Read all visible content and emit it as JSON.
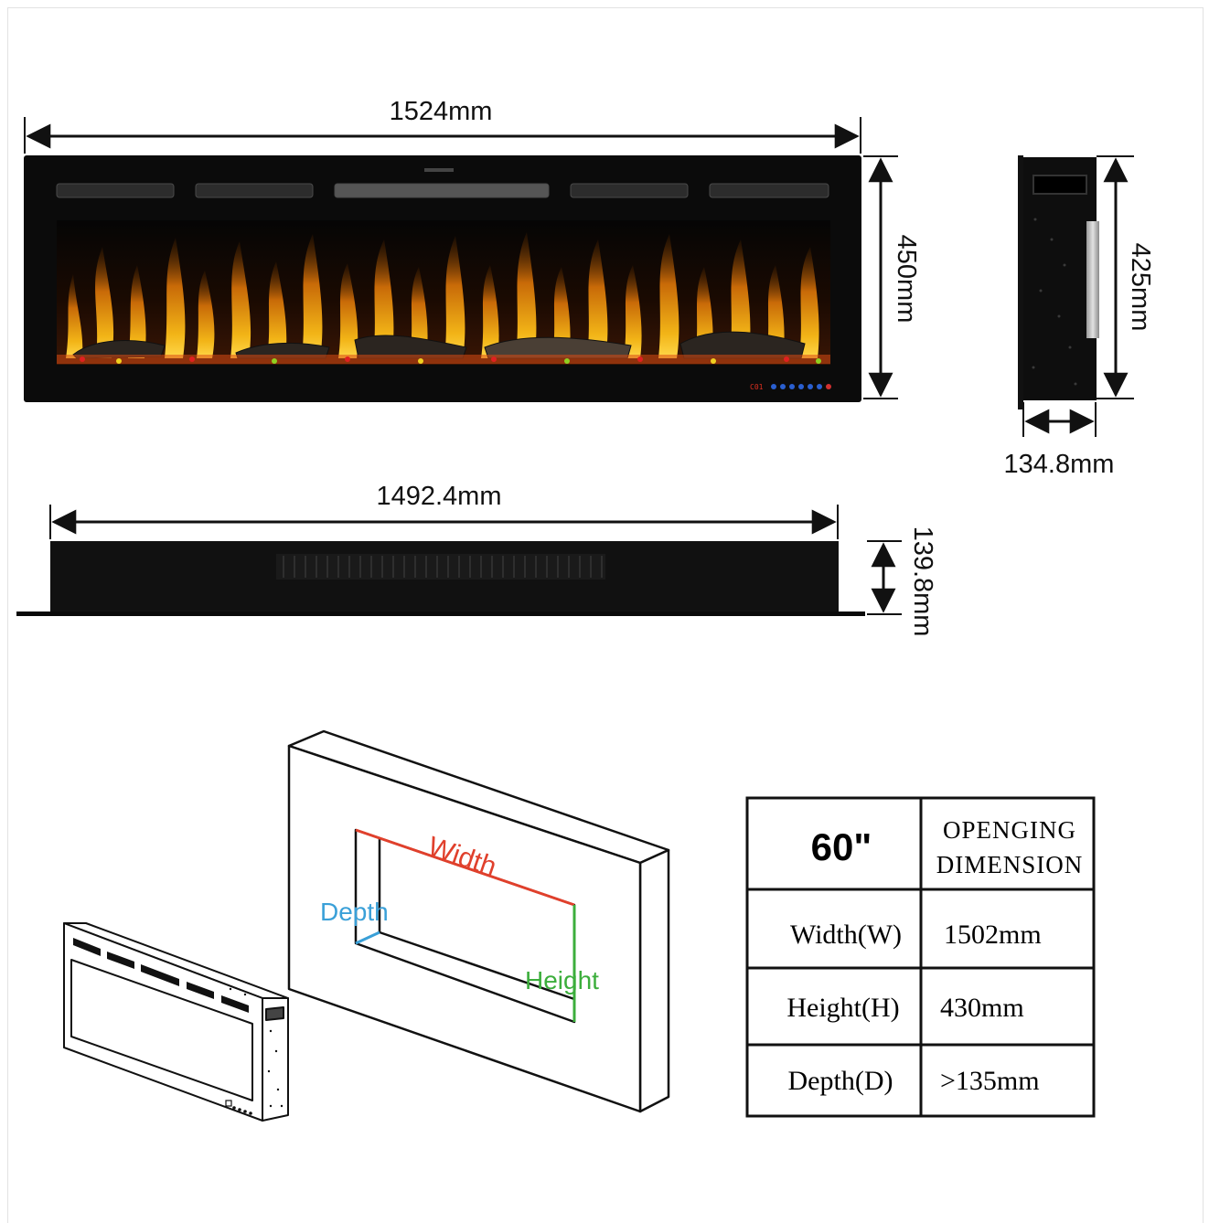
{
  "front_view": {
    "width_label": "1524mm",
    "height_label": "450mm",
    "display_text": "C01"
  },
  "side_view": {
    "height_label": "425mm",
    "depth_label": "134.8mm"
  },
  "top_view": {
    "width_label": "1492.4mm",
    "depth_label": "139.8mm"
  },
  "opening_diagram": {
    "width_label": "Width",
    "depth_label": "Depth",
    "height_label": "Height",
    "colors": {
      "width": "#e0402c",
      "depth": "#3aa0d8",
      "height": "#3cae3c"
    }
  },
  "table": {
    "size": "60\"",
    "header_line1": "OPENGING",
    "header_line2": "DIMENSION",
    "rows": [
      {
        "label": "Width(W)",
        "value": "1502mm"
      },
      {
        "label": "Height(H)",
        "value": "430mm"
      },
      {
        "label": "Depth(D)",
        "value": ">135mm"
      }
    ]
  }
}
